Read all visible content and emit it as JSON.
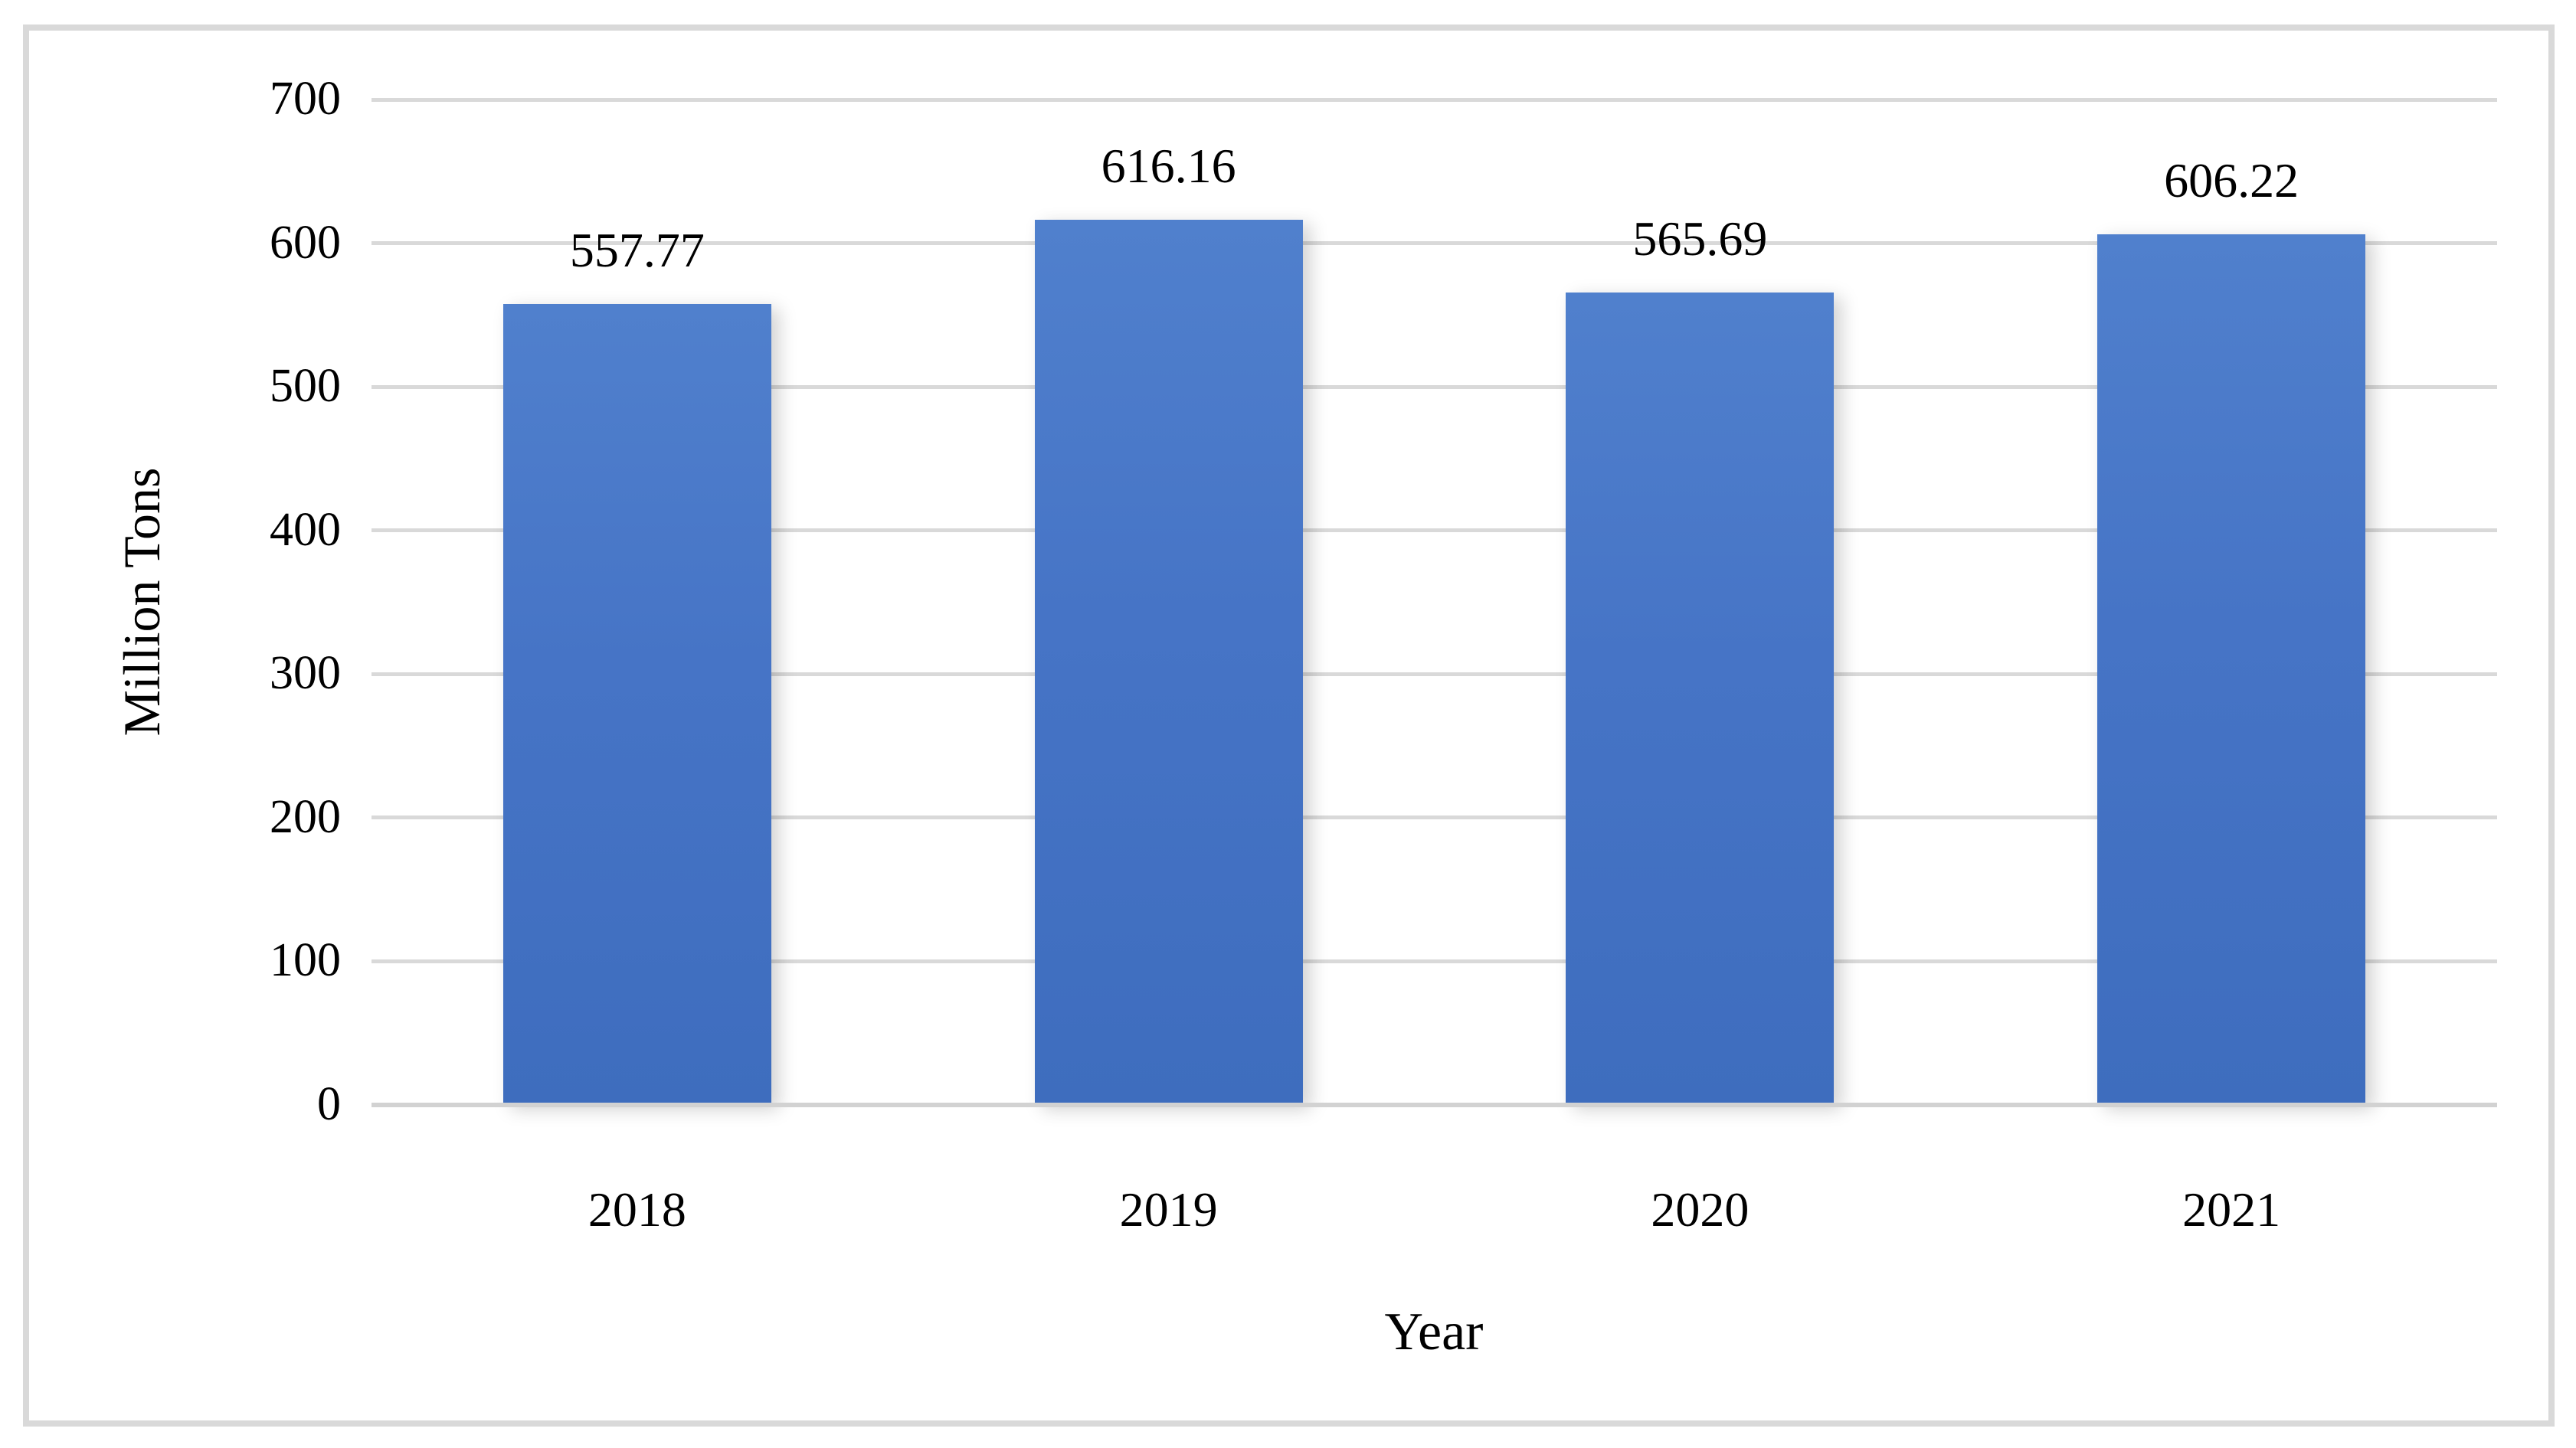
{
  "chart_data": {
    "type": "bar",
    "categories": [
      "2018",
      "2019",
      "2020",
      "2021"
    ],
    "values": [
      557.77,
      616.16,
      565.69,
      606.22
    ],
    "data_labels": [
      "557.77",
      "616.16",
      "565.69",
      "606.22"
    ],
    "title": "",
    "xlabel": "Year",
    "ylabel": "Million Tons",
    "ylim": [
      0,
      700
    ],
    "yticks": [
      0,
      100,
      200,
      300,
      400,
      500,
      600,
      700
    ],
    "grid": true,
    "legend": "none",
    "bar_color": "#4472C4",
    "gridline_color": "#D9D9D9",
    "border_color": "#D9D9D9",
    "label_color": "#000000"
  }
}
